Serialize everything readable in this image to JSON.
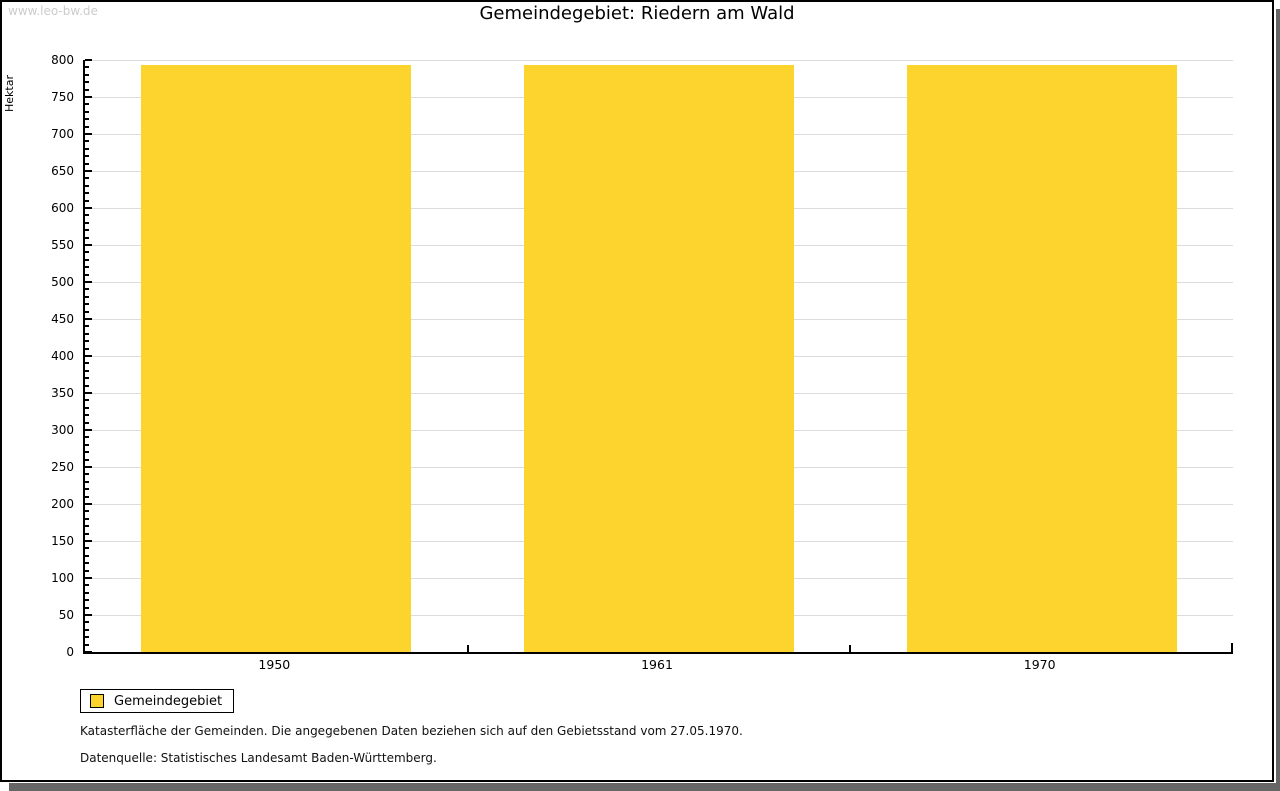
{
  "watermark": "www.leo-bw.de",
  "chart_data": {
    "type": "bar",
    "title": "Gemeindegebiet: Riedern am Wald",
    "categories": [
      "1950",
      "1961",
      "1970"
    ],
    "series": [
      {
        "name": "Gemeindegebiet",
        "values": [
          793,
          793,
          793
        ]
      }
    ],
    "xlabel": "",
    "ylabel": "Hektar",
    "ylim": [
      0,
      800
    ],
    "ytick_major": 50,
    "ytick_minor": 10,
    "grid": true,
    "legend_position": "below-left",
    "bar_color": "#FCD42D",
    "grid_color": "#DCDCDC",
    "axis_color": "#000000"
  },
  "footer": {
    "line1": "Katasterfläche der Gemeinden. Die angegebenen Daten beziehen sich auf den Gebietsstand vom 27.05.1970.",
    "line2": "Datenquelle: Statistisches Landesamt Baden-Württemberg."
  }
}
